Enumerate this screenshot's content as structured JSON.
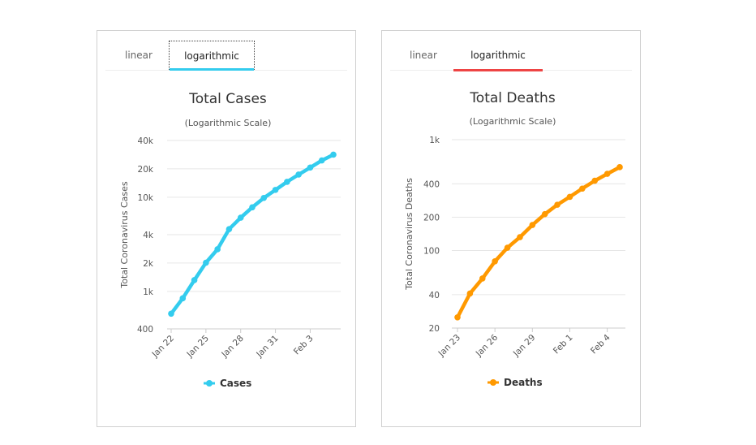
{
  "tabs": {
    "linear": "linear",
    "logarithmic": "logarithmic"
  },
  "chart_data": [
    {
      "type": "line",
      "title": "Total Cases",
      "subtitle": "(Logarithmic Scale)",
      "ylabel": "Total Coronavirus Cases",
      "xlabel": "",
      "yscale": "log",
      "ylim": [
        400,
        40000
      ],
      "y_ticks": [
        400,
        1000,
        2000,
        4000,
        10000,
        20000,
        40000
      ],
      "y_tick_labels": [
        "400",
        "1k",
        "2k",
        "4k",
        "10k",
        "20k",
        "40k"
      ],
      "x_ticks": [
        "Jan 22",
        "Jan 25",
        "Jan 28",
        "Jan 31",
        "Feb 3"
      ],
      "x_tick_index": [
        0,
        3,
        6,
        9,
        12
      ],
      "categories": [
        "Jan 22",
        "Jan 23",
        "Jan 24",
        "Jan 25",
        "Jan 26",
        "Jan 27",
        "Jan 28",
        "Jan 29",
        "Jan 30",
        "Jan 31",
        "Feb 1",
        "Feb 2",
        "Feb 3",
        "Feb 4",
        "Feb 5"
      ],
      "series": [
        {
          "name": "Cases",
          "color": "#33ccee",
          "values": [
            580,
            845,
            1317,
            2015,
            2800,
            4581,
            6058,
            7813,
            9823,
            11950,
            14553,
            17391,
            20630,
            24545,
            28276
          ]
        }
      ],
      "legend": "bottom-center",
      "grid": true
    },
    {
      "type": "line",
      "title": "Total Deaths",
      "subtitle": "(Logarithmic Scale)",
      "ylabel": "Total Coronavirus Deaths",
      "xlabel": "",
      "yscale": "log",
      "ylim": [
        20,
        1000
      ],
      "y_ticks": [
        20,
        40,
        100,
        200,
        400,
        1000
      ],
      "y_tick_labels": [
        "20",
        "40",
        "100",
        "200",
        "400",
        "1k"
      ],
      "x_ticks": [
        "Jan 23",
        "Jan 26",
        "Jan 29",
        "Feb 1",
        "Feb 4"
      ],
      "x_tick_index": [
        0,
        3,
        6,
        9,
        12
      ],
      "categories": [
        "Jan 23",
        "Jan 24",
        "Jan 25",
        "Jan 26",
        "Jan 27",
        "Jan 28",
        "Jan 29",
        "Jan 30",
        "Jan 31",
        "Feb 1",
        "Feb 2",
        "Feb 3",
        "Feb 4",
        "Feb 5"
      ],
      "series": [
        {
          "name": "Deaths",
          "color": "#ff9900",
          "values": [
            25,
            41,
            56,
            80,
            106,
            132,
            170,
            213,
            259,
            305,
            362,
            426,
            492,
            565
          ]
        }
      ],
      "legend": "bottom-center",
      "grid": true
    }
  ],
  "colors": {
    "cases_accent": "#33ccee",
    "deaths_accent": "#ee4444"
  }
}
